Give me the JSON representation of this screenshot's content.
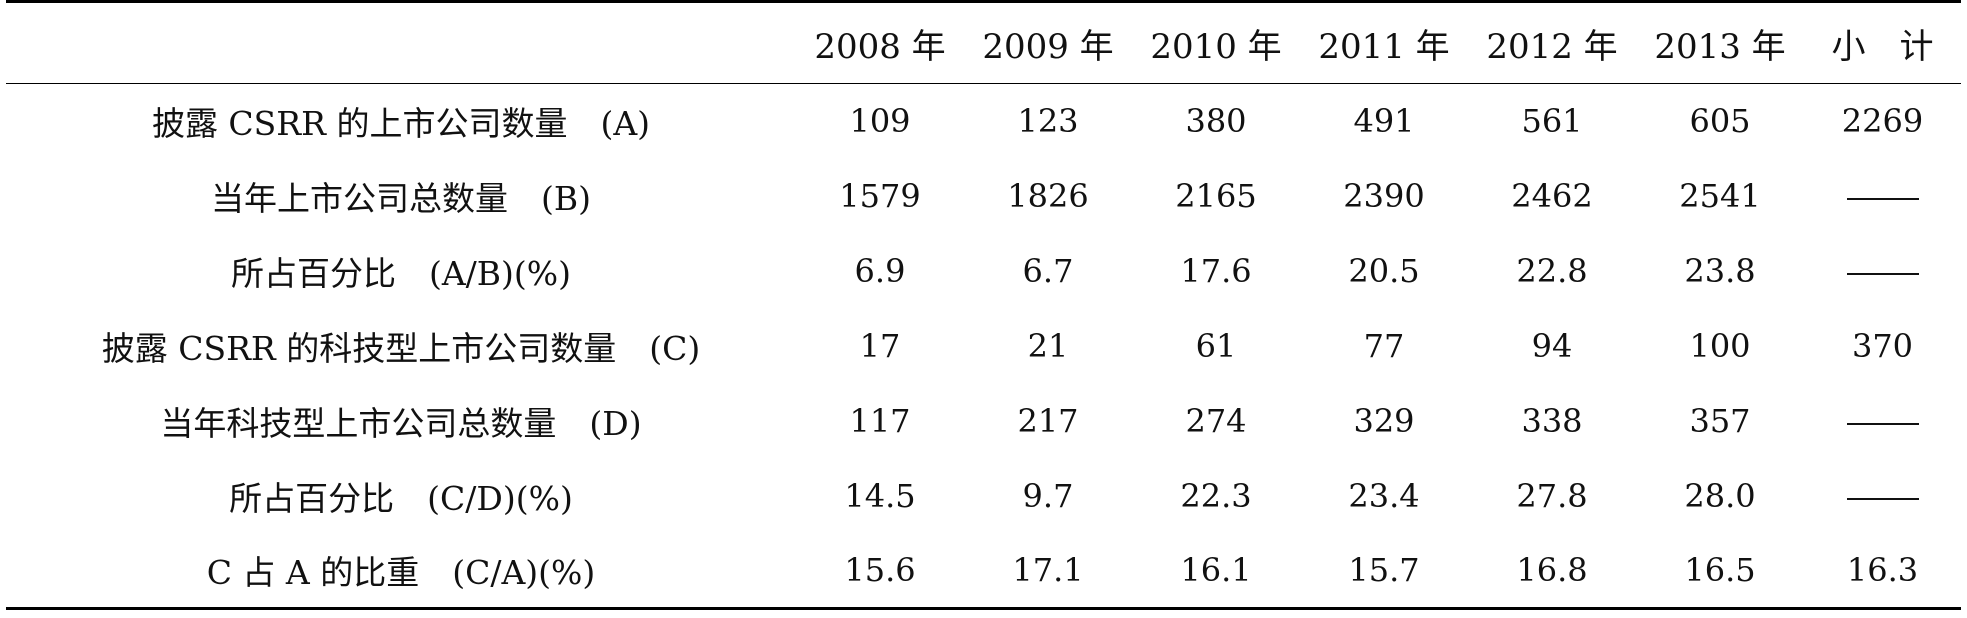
{
  "table": {
    "corner": "",
    "headers": [
      "2008 年",
      "2009 年",
      "2010 年",
      "2011 年",
      "2012 年",
      "2013 年",
      "小　计"
    ],
    "rows": [
      {
        "label": "披露 CSRR 的上市公司数量　(A)",
        "values": [
          "109",
          "123",
          "380",
          "491",
          "561",
          "605",
          "2269"
        ]
      },
      {
        "label": "当年上市公司总数量　(B)",
        "values": [
          "1579",
          "1826",
          "2165",
          "2390",
          "2462",
          "2541",
          null
        ]
      },
      {
        "label": "所占百分比　(A/B)(%)",
        "values": [
          "6.9",
          "6.7",
          "17.6",
          "20.5",
          "22.8",
          "23.8",
          null
        ]
      },
      {
        "label": "披露 CSRR 的科技型上市公司数量　(C)",
        "values": [
          "17",
          "21",
          "61",
          "77",
          "94",
          "100",
          "370"
        ]
      },
      {
        "label": "当年科技型上市公司总数量　(D)",
        "values": [
          "117",
          "217",
          "274",
          "329",
          "338",
          "357",
          null
        ]
      },
      {
        "label": "所占百分比　(C/D)(%)",
        "values": [
          "14.5",
          "9.7",
          "22.3",
          "23.4",
          "27.8",
          "28.0",
          null
        ]
      },
      {
        "label": "C 占 A 的比重　(C/A)(%)",
        "values": [
          "15.6",
          "17.1",
          "16.1",
          "15.7",
          "16.8",
          "16.5",
          "16.3"
        ]
      }
    ]
  }
}
